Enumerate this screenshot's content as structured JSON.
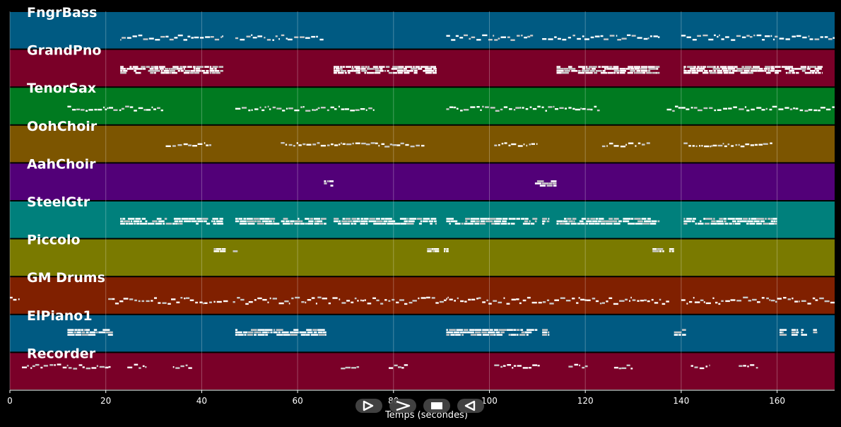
{
  "colors": {
    "background": "#000000",
    "grid": "#ffffff",
    "note": "#ffffff",
    "note_alt": "#c9c9c9"
  },
  "player_controls": [
    {
      "name": "play-icon",
      "action": "play"
    },
    {
      "name": "fast-forward-icon",
      "action": "forward"
    },
    {
      "name": "stop-icon",
      "action": "stop"
    },
    {
      "name": "rewind-icon",
      "action": "back"
    }
  ],
  "chart_data": {
    "type": "piano-roll",
    "xlabel": "Temps (secondes)",
    "ylabel": "",
    "xlim": [
      0,
      172
    ],
    "x_ticks": [
      0,
      20,
      40,
      60,
      80,
      100,
      120,
      140,
      160
    ],
    "x_tick_labels": [
      "0",
      "20",
      "40",
      "60",
      "80",
      "100",
      "120",
      "140",
      "160"
    ],
    "grid": true,
    "tracks": [
      {
        "name": "FngrBass",
        "color": "#005a82",
        "style": "line",
        "ycenter": 0.68,
        "spread": 0.14,
        "segments": [
          [
            23,
            44.5
          ],
          [
            47,
            65.5
          ],
          [
            91,
            109.5
          ],
          [
            111,
            135.5
          ],
          [
            140,
            159.5
          ],
          [
            159.5,
            172
          ]
        ]
      },
      {
        "name": "GrandPno",
        "color": "#7a0028",
        "style": "block",
        "ycenter": 0.55,
        "spread": 0.22,
        "segments": [
          [
            23,
            44.5
          ],
          [
            67.5,
            89
          ],
          [
            114,
            135.5
          ],
          [
            140.5,
            159.5
          ],
          [
            159.5,
            169.5
          ]
        ]
      },
      {
        "name": "TenorSax",
        "color": "#007a20",
        "style": "line",
        "ycenter": 0.55,
        "spread": 0.12,
        "segments": [
          [
            12,
            32
          ],
          [
            47,
            76
          ],
          [
            91,
            123
          ],
          [
            137,
            172
          ]
        ]
      },
      {
        "name": "OohChoir",
        "color": "#7c5500",
        "style": "line",
        "ycenter": 0.5,
        "spread": 0.1,
        "segments": [
          [
            32.5,
            42
          ],
          [
            56.5,
            86.5
          ],
          [
            101,
            110
          ],
          [
            123.5,
            133.5
          ],
          [
            140.5,
            159
          ]
        ]
      },
      {
        "name": "AahChoir",
        "color": "#520078",
        "style": "block",
        "ycenter": 0.55,
        "spread": 0.18,
        "segments": [
          [
            65.5,
            67.5
          ],
          [
            109.5,
            114
          ]
        ]
      },
      {
        "name": "SteelGtr",
        "color": "#00807c",
        "style": "block",
        "ycenter": 0.55,
        "spread": 0.2,
        "segments": [
          [
            23,
            44.5
          ],
          [
            47,
            66
          ],
          [
            67.5,
            89
          ],
          [
            91,
            110
          ],
          [
            111,
            112.5
          ],
          [
            114,
            135.5
          ],
          [
            140.5,
            160
          ]
        ]
      },
      {
        "name": "Piccolo",
        "color": "#7a7a00",
        "style": "block",
        "ycenter": 0.3,
        "spread": 0.12,
        "segments": [
          [
            42.5,
            45
          ],
          [
            46.5,
            47.5
          ],
          [
            87,
            89.5
          ],
          [
            90.5,
            91.5
          ],
          [
            134,
            136.5
          ],
          [
            137.5,
            138.5
          ]
        ]
      },
      {
        "name": "GM Drums",
        "color": "#802000",
        "style": "line",
        "ycenter": 0.62,
        "spread": 0.18,
        "segments": [
          [
            0,
            2
          ],
          [
            20.5,
            45.5
          ],
          [
            46.5,
            91.5
          ],
          [
            91,
            137.5
          ],
          [
            140,
            160
          ],
          [
            160,
            172
          ]
        ]
      },
      {
        "name": "ElPiano1",
        "color": "#005a82",
        "style": "block",
        "ycenter": 0.48,
        "spread": 0.2,
        "segments": [
          [
            12,
            21.5
          ],
          [
            47,
            66
          ],
          [
            91,
            110
          ],
          [
            111,
            112.5
          ],
          [
            138.5,
            141
          ],
          [
            160.5,
            162
          ],
          [
            163,
            164.5
          ],
          [
            165,
            166.5
          ],
          [
            167.5,
            168.5
          ]
        ]
      },
      {
        "name": "Recorder",
        "color": "#7a0028",
        "style": "line",
        "ycenter": 0.35,
        "spread": 0.12,
        "segments": [
          [
            2.5,
            21
          ],
          [
            24.5,
            28.5
          ],
          [
            34,
            38
          ],
          [
            69,
            73
          ],
          [
            79,
            83
          ],
          [
            101,
            110.5
          ],
          [
            116.5,
            120.5
          ],
          [
            126,
            130
          ],
          [
            142,
            146
          ],
          [
            152,
            156
          ]
        ]
      }
    ]
  }
}
